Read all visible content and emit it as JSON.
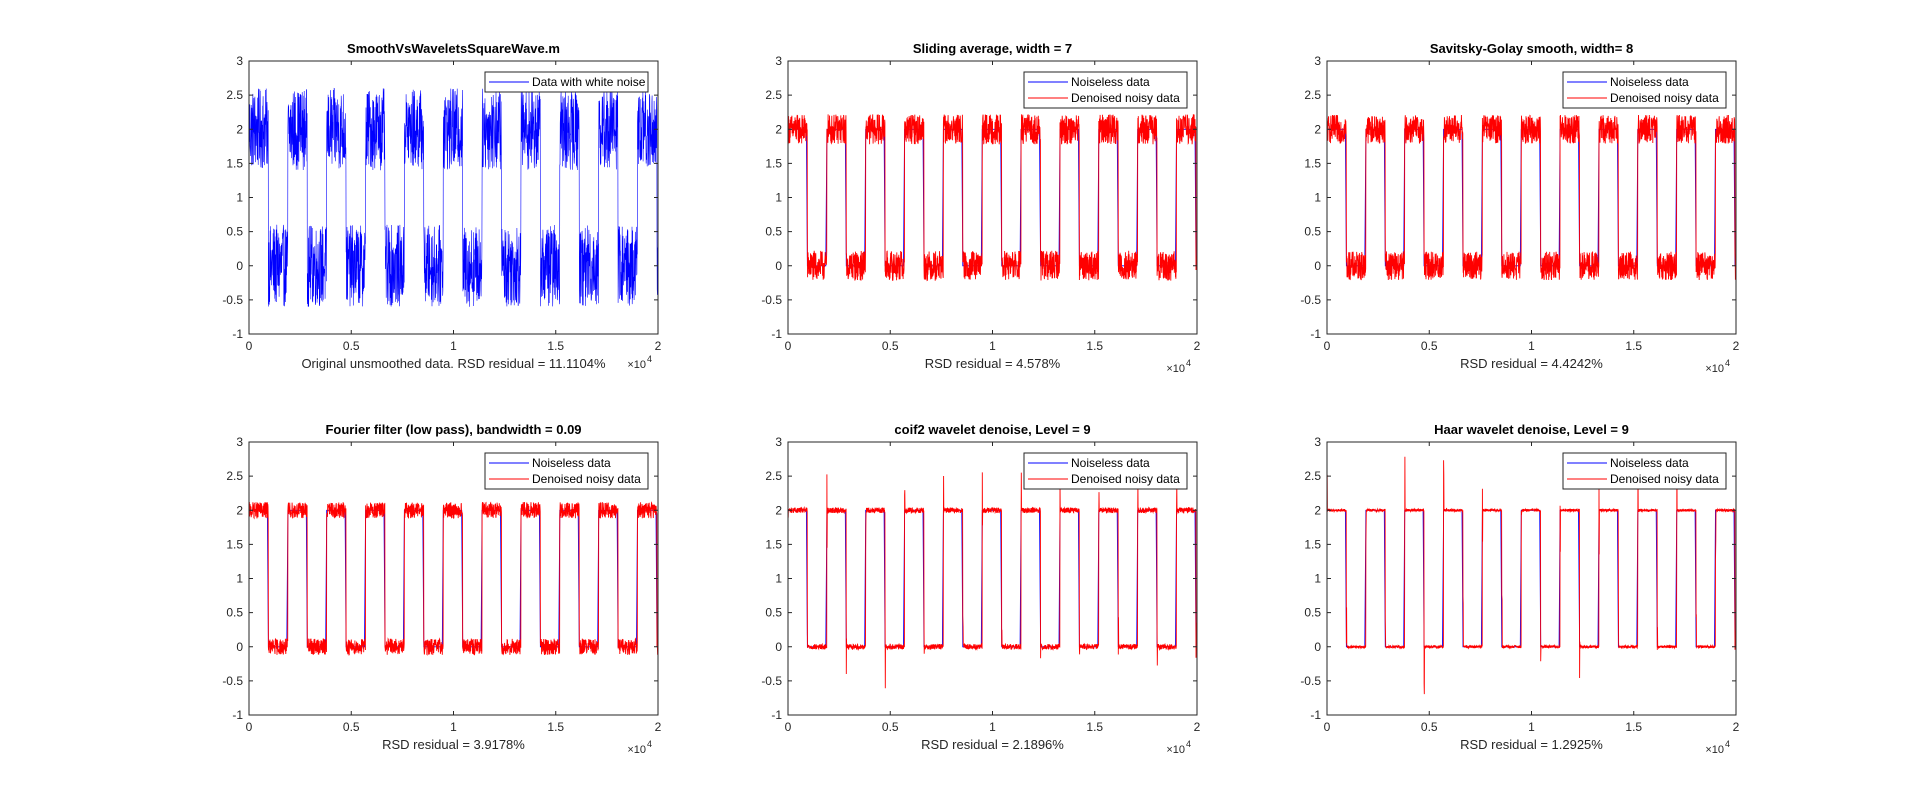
{
  "figure": {
    "background": "#ffffff",
    "axis_color": "#262626",
    "tick_label_color": "#262626"
  },
  "chart_data": [
    {
      "type": "line",
      "title": "SmoothVsWaveletsSquareWave.m",
      "xlabel": "Original unsmoothed data. RSD residual =  11.1104%",
      "x_exponent_label": "×10",
      "x_exponent": "4",
      "xlim": [
        0,
        20000
      ],
      "ylim": [
        -1,
        3
      ],
      "xticks": [
        0,
        5000,
        10000,
        15000,
        20000
      ],
      "xtick_labels": [
        "0",
        "0.5",
        "1",
        "1.5",
        "2"
      ],
      "yticks": [
        -1,
        -0.5,
        0,
        0.5,
        1,
        1.5,
        2,
        2.5,
        3
      ],
      "ytick_labels": [
        "-1",
        "-0.5",
        "0",
        "0.5",
        "1",
        "1.5",
        "2",
        "2.5",
        "3"
      ],
      "grid": false,
      "legend": {
        "placement": "top-right",
        "entries": [
          "Data with white noise"
        ]
      },
      "signal": {
        "low": 0,
        "high": 2,
        "half_period": 950,
        "start_level": "high"
      },
      "series": [
        {
          "name": "Data with white noise",
          "color": "#0000ff",
          "noise_amplitude": 0.6,
          "spike_amplitude": 0
        }
      ]
    },
    {
      "type": "line",
      "title": "Sliding average, width =  7",
      "xlabel": "RSD residual =  4.578%",
      "x_exponent_label": "×10",
      "x_exponent": "4",
      "xlim": [
        0,
        20000
      ],
      "ylim": [
        -1,
        3
      ],
      "xticks": [
        0,
        5000,
        10000,
        15000,
        20000
      ],
      "xtick_labels": [
        "0",
        "0.5",
        "1",
        "1.5",
        "2"
      ],
      "yticks": [
        -1,
        -0.5,
        0,
        0.5,
        1,
        1.5,
        2,
        2.5,
        3
      ],
      "ytick_labels": [
        "-1",
        "-0.5",
        "0",
        "0.5",
        "1",
        "1.5",
        "2",
        "2.5",
        "3"
      ],
      "grid": false,
      "legend": {
        "placement": "top-right",
        "entries": [
          "Noiseless data",
          "Denoised noisy data"
        ]
      },
      "signal": {
        "low": 0,
        "high": 2,
        "half_period": 950,
        "start_level": "high"
      },
      "series": [
        {
          "name": "Noiseless data",
          "color": "#0000ff",
          "noise_amplitude": 0,
          "spike_amplitude": 0
        },
        {
          "name": "Denoised noisy data",
          "color": "#ff0000",
          "noise_amplitude": 0.22,
          "spike_amplitude": 0
        }
      ]
    },
    {
      "type": "line",
      "title": "Savitsky-Golay smooth, width= 8",
      "xlabel": "RSD residual =  4.4242%",
      "x_exponent_label": "×10",
      "x_exponent": "4",
      "xlim": [
        0,
        20000
      ],
      "ylim": [
        -1,
        3
      ],
      "xticks": [
        0,
        5000,
        10000,
        15000,
        20000
      ],
      "xtick_labels": [
        "0",
        "0.5",
        "1",
        "1.5",
        "2"
      ],
      "yticks": [
        -1,
        -0.5,
        0,
        0.5,
        1,
        1.5,
        2,
        2.5,
        3
      ],
      "ytick_labels": [
        "-1",
        "-0.5",
        "0",
        "0.5",
        "1",
        "1.5",
        "2",
        "2.5",
        "3"
      ],
      "grid": false,
      "legend": {
        "placement": "top-right",
        "entries": [
          "Noiseless data",
          "Denoised noisy data"
        ]
      },
      "signal": {
        "low": 0,
        "high": 2,
        "half_period": 950,
        "start_level": "high"
      },
      "series": [
        {
          "name": "Noiseless data",
          "color": "#0000ff",
          "noise_amplitude": 0,
          "spike_amplitude": 0
        },
        {
          "name": "Denoised noisy data",
          "color": "#ff0000",
          "noise_amplitude": 0.21,
          "spike_amplitude": 0
        }
      ]
    },
    {
      "type": "line",
      "title": "Fourier filter (low pass), bandwidth =  0.09",
      "xlabel": "RSD residual =  3.9178%",
      "x_exponent_label": "×10",
      "x_exponent": "4",
      "xlim": [
        0,
        20000
      ],
      "ylim": [
        -1,
        3
      ],
      "xticks": [
        0,
        5000,
        10000,
        15000,
        20000
      ],
      "xtick_labels": [
        "0",
        "0.5",
        "1",
        "1.5",
        "2"
      ],
      "yticks": [
        -1,
        -0.5,
        0,
        0.5,
        1,
        1.5,
        2,
        2.5,
        3
      ],
      "ytick_labels": [
        "-1",
        "-0.5",
        "0",
        "0.5",
        "1",
        "1.5",
        "2",
        "2.5",
        "3"
      ],
      "grid": false,
      "legend": {
        "placement": "top-right",
        "entries": [
          "Noiseless data",
          "Denoised noisy data"
        ]
      },
      "signal": {
        "low": 0,
        "high": 2,
        "half_period": 950,
        "start_level": "high"
      },
      "series": [
        {
          "name": "Noiseless data",
          "color": "#0000ff",
          "noise_amplitude": 0,
          "spike_amplitude": 0
        },
        {
          "name": "Denoised noisy data",
          "color": "#ff0000",
          "noise_amplitude": 0.12,
          "spike_amplitude": 0
        }
      ]
    },
    {
      "type": "line",
      "title": "coif2 wavelet denoise, Level = 9",
      "xlabel": "RSD residual =  2.1896%",
      "x_exponent_label": "×10",
      "x_exponent": "4",
      "xlim": [
        0,
        20000
      ],
      "ylim": [
        -1,
        3
      ],
      "xticks": [
        0,
        5000,
        10000,
        15000,
        20000
      ],
      "xtick_labels": [
        "0",
        "0.5",
        "1",
        "1.5",
        "2"
      ],
      "yticks": [
        -1,
        -0.5,
        0,
        0.5,
        1,
        1.5,
        2,
        2.5,
        3
      ],
      "ytick_labels": [
        "-1",
        "-0.5",
        "0",
        "0.5",
        "1",
        "1.5",
        "2",
        "2.5",
        "3"
      ],
      "grid": false,
      "legend": {
        "placement": "top-right",
        "entries": [
          "Noiseless data",
          "Denoised noisy data"
        ]
      },
      "signal": {
        "low": 0,
        "high": 2,
        "half_period": 950,
        "start_level": "high"
      },
      "series": [
        {
          "name": "Noiseless data",
          "color": "#0000ff",
          "noise_amplitude": 0,
          "spike_amplitude": 0
        },
        {
          "name": "Denoised noisy data",
          "color": "#ff0000",
          "noise_amplitude": 0.04,
          "spike_amplitude": 0.3
        }
      ]
    },
    {
      "type": "line",
      "title": "Haar wavelet denoise, Level = 9",
      "xlabel": "RSD residual =  1.2925%",
      "x_exponent_label": "×10",
      "x_exponent": "4",
      "xlim": [
        0,
        20000
      ],
      "ylim": [
        -1,
        3
      ],
      "xticks": [
        0,
        5000,
        10000,
        15000,
        20000
      ],
      "xtick_labels": [
        "0",
        "0.5",
        "1",
        "1.5",
        "2"
      ],
      "yticks": [
        -1,
        -0.5,
        0,
        0.5,
        1,
        1.5,
        2,
        2.5,
        3
      ],
      "ytick_labels": [
        "-1",
        "-0.5",
        "0",
        "0.5",
        "1",
        "1.5",
        "2",
        "2.5",
        "3"
      ],
      "grid": false,
      "legend": {
        "placement": "top-right",
        "entries": [
          "Noiseless data",
          "Denoised noisy data"
        ]
      },
      "signal": {
        "low": 0,
        "high": 2,
        "half_period": 950,
        "start_level": "high"
      },
      "series": [
        {
          "name": "Noiseless data",
          "color": "#0000ff",
          "noise_amplitude": 0,
          "spike_amplitude": 0
        },
        {
          "name": "Denoised noisy data",
          "color": "#ff0000",
          "noise_amplitude": 0.02,
          "spike_amplitude": 0.4
        }
      ]
    }
  ]
}
